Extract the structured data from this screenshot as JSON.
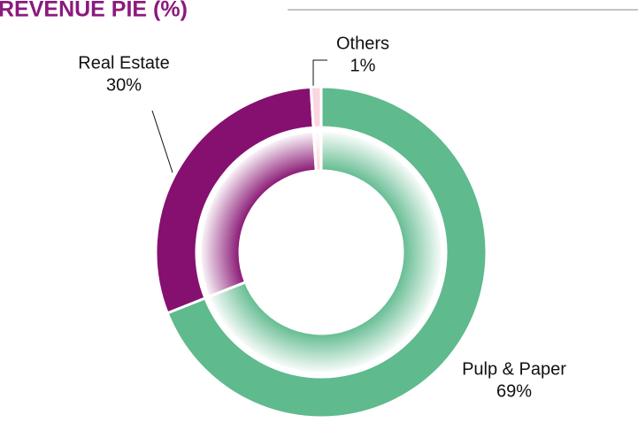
{
  "chart_data": {
    "type": "donut",
    "title": "REVENUE PIE (%)",
    "categories": [
      "Pulp & Paper",
      "Real Estate",
      "Others"
    ],
    "values": [
      69,
      30,
      1
    ],
    "value_labels": [
      "69%",
      "30%",
      "1%"
    ],
    "colors": [
      "#5fba8e",
      "#861070",
      "#fbd5df"
    ]
  }
}
